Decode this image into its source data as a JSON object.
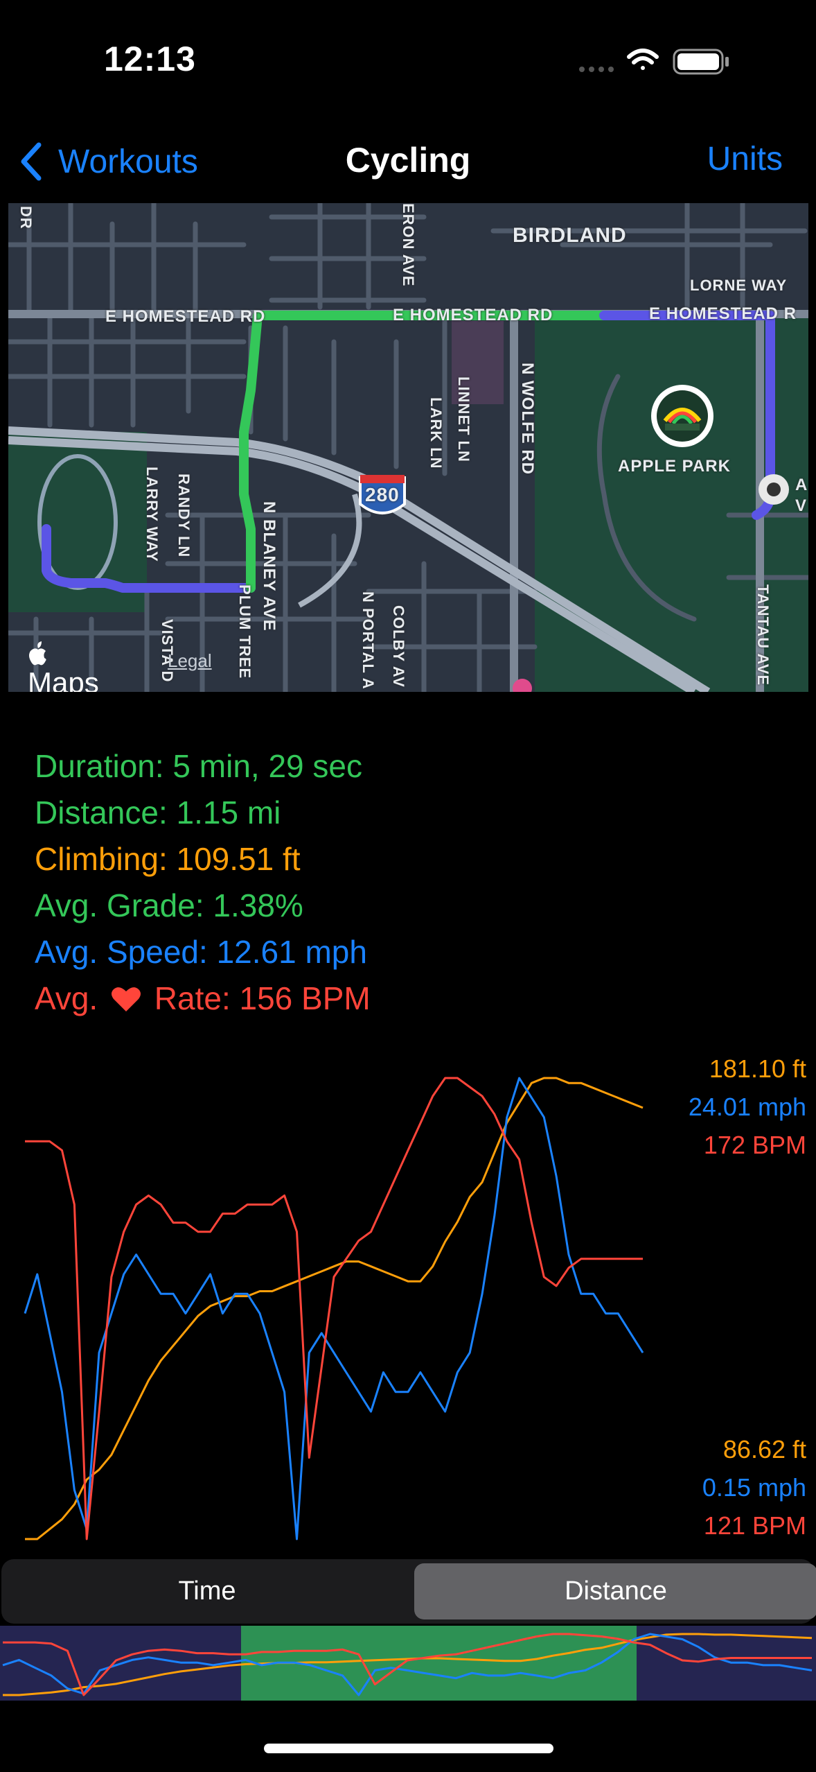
{
  "status_bar": {
    "time": "12:13"
  },
  "nav": {
    "back_label": "Workouts",
    "title": "Cycling",
    "units_label": "Units"
  },
  "map": {
    "labels": {
      "birdland": "BIRDLAND",
      "lorne_way": "LORNE WAY",
      "homestead_1": "E HOMESTEAD RD",
      "homestead_2": "E HOMESTEAD RD",
      "homestead_3": "E HOMESTEAD R",
      "apple_park": "APPLE PARK",
      "highway": "280",
      "n_wolfe": "N WOLFE RD",
      "linnet": "LINNET LN",
      "lark": "LARK LN",
      "eron_ave": "ERON AVE",
      "randy": "RANDY LN",
      "larry": "LARRY WAY",
      "n_blaney": "N BLANEY AVE",
      "plum_tree": "PLUM TREE",
      "vista": "VISTA D",
      "n_portal": "N PORTAL A",
      "colby": "COLBY AV",
      "tantau": "TANTAU AVE",
      "dr": "DR",
      "av": "A V"
    },
    "maps_logo": "Maps",
    "legal": "Legal"
  },
  "stats": {
    "duration": "Duration: 5 min, 29 sec",
    "distance": "Distance: 1.15 mi",
    "climbing": "Climbing: 109.51 ft",
    "grade": "Avg. Grade: 1.38%",
    "speed": "Avg. Speed: 12.61 mph",
    "heart_prefix": "Avg.",
    "heart_suffix": "Rate: 156 BPM"
  },
  "chart_data": {
    "type": "line",
    "x": [
      0,
      1,
      2,
      3,
      4,
      5,
      6,
      7,
      8,
      9,
      10,
      11,
      12,
      13,
      14,
      15,
      16,
      17,
      18,
      19,
      20,
      21,
      22,
      23,
      24,
      25,
      26,
      27,
      28,
      29,
      30,
      31,
      32,
      33,
      34,
      35,
      36,
      37,
      38,
      39,
      40,
      41,
      42,
      43,
      44,
      45,
      46,
      47,
      48,
      49,
      50
    ],
    "series": [
      {
        "unit": "ft",
        "color": "#ff9f0a",
        "max_label": "181.10 ft",
        "min_label": "86.62 ft",
        "values": [
          88,
          88,
          90,
          92,
          95,
          100,
          102,
          105,
          110,
          115,
          120,
          124,
          127,
          130,
          133,
          135,
          136,
          137,
          137,
          138,
          138,
          139,
          140,
          141,
          142,
          143,
          144,
          144,
          143,
          142,
          141,
          140,
          140,
          143,
          148,
          152,
          157,
          160,
          166,
          172,
          176,
          180,
          181,
          181,
          180,
          180,
          179,
          178,
          177,
          176,
          175
        ]
      },
      {
        "unit": "mph",
        "color": "#1a82ff",
        "max_label": "24.01 mph",
        "min_label": "0.15 mph",
        "values": [
          12,
          14,
          11,
          8,
          3,
          1,
          10,
          12,
          14,
          15,
          14,
          13,
          13,
          12,
          13,
          14,
          12,
          13,
          13,
          12,
          10,
          8,
          0.5,
          10,
          11,
          10,
          9,
          8,
          7,
          9,
          8,
          8,
          9,
          8,
          7,
          9,
          10,
          13,
          17,
          22,
          24,
          23,
          22,
          19,
          15,
          13,
          13,
          12,
          12,
          11,
          10
        ]
      },
      {
        "unit": "BPM",
        "color": "#ff453a",
        "max_label": "172 BPM",
        "min_label": "121 BPM",
        "values": [
          165,
          165,
          165,
          164,
          158,
          121,
          135,
          150,
          155,
          158,
          159,
          158,
          156,
          156,
          155,
          155,
          157,
          157,
          158,
          158,
          158,
          159,
          155,
          130,
          140,
          150,
          152,
          154,
          155,
          158,
          161,
          164,
          167,
          170,
          172,
          172,
          171,
          170,
          168,
          165,
          163,
          156,
          150,
          149,
          151,
          152,
          152,
          152,
          152,
          152,
          152
        ]
      }
    ]
  },
  "segmented": {
    "time_label": "Time",
    "distance_label": "Distance",
    "selected": "Distance"
  },
  "overview": {
    "range_start": 0.295,
    "range_end": 0.78
  }
}
